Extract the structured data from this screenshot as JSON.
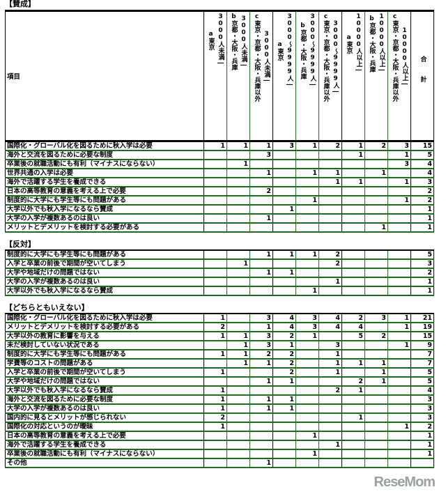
{
  "header": {
    "item_label": "項目",
    "total_label": "合計",
    "columns": [
      {
        "region": "a東京",
        "size": "3000人未満―"
      },
      {
        "region": "b京都・大阪・兵庫",
        "size": "3000人未満―"
      },
      {
        "region": "c東京・京都・大阪・兵庫以外",
        "size": "3000人未満―"
      },
      {
        "region": "a東京",
        "size": "3000～9999人―"
      },
      {
        "region": "b京都・大阪・兵庫",
        "size": "3000～9999人―"
      },
      {
        "region": "c東京・京都・大阪・兵庫以外",
        "size": "3000～9999人―"
      },
      {
        "region": "a東京",
        "size": "10000人以上―"
      },
      {
        "region": "b京都・大阪・兵庫",
        "size": "10000人以上―"
      },
      {
        "region": "c東京・京都・大阪・兵庫以外",
        "size": "10000人以上―"
      }
    ]
  },
  "sections": [
    {
      "title": "【賛成】",
      "rows": [
        {
          "label": "国際化・グローバル化を図るために秋入学は必要",
          "values": [
            "1",
            "1",
            "1",
            "3",
            "1",
            "2",
            "1",
            "2",
            "3"
          ],
          "total": "15"
        },
        {
          "label": "海外と交流を図るために必要な制度",
          "values": [
            "",
            "",
            "3",
            "",
            "",
            "",
            "1",
            "",
            "1"
          ],
          "total": "5"
        },
        {
          "label": "卒業後の就職活動にも有利（マイナスにならない）",
          "values": [
            "",
            "1",
            "",
            "",
            "",
            "",
            "",
            "",
            "3"
          ],
          "total": "4"
        },
        {
          "label": "世界共通の入学は必要",
          "values": [
            "",
            "",
            "1",
            "",
            "1",
            "1",
            "",
            "1",
            ""
          ],
          "total": "4"
        },
        {
          "label": "海外で活躍する学生を養成できる",
          "values": [
            "",
            "",
            "",
            "",
            "",
            "1",
            "1",
            "",
            "1"
          ],
          "total": "3"
        },
        {
          "label": "日本の高等教育の意義を考える上で必要",
          "values": [
            "",
            "",
            "2",
            "",
            "",
            "",
            "",
            "",
            ""
          ],
          "total": "2"
        },
        {
          "label": "制度的に大学にも学生等にも問題がある",
          "values": [
            "",
            "",
            "",
            "",
            "1",
            "",
            "",
            "",
            "1"
          ],
          "total": "2"
        },
        {
          "label": "大学以外でも秋入学になるなら賛成",
          "values": [
            "",
            "",
            "",
            "1",
            "",
            "",
            "",
            "",
            ""
          ],
          "total": "1"
        },
        {
          "label": "大学の入学が複数あるのは良い",
          "values": [
            "",
            "",
            "1",
            "",
            "",
            "",
            "",
            "",
            ""
          ],
          "total": "1"
        },
        {
          "label": "メリットとデメリットを検討する必要がある",
          "values": [
            "",
            "",
            "",
            "",
            "",
            "",
            "",
            "1",
            ""
          ],
          "total": "1"
        }
      ]
    },
    {
      "title": "【反対】",
      "rows": [
        {
          "label": "制度的に大学にも学生等にも問題がある",
          "values": [
            "",
            "",
            "1",
            "1",
            "1",
            "2",
            "",
            "",
            ""
          ],
          "total": "5"
        },
        {
          "label": "入学と卒業の前後で期間が空いてしまう",
          "values": [
            "",
            "1",
            "",
            "",
            "",
            "2",
            "",
            "",
            ""
          ],
          "total": "3"
        },
        {
          "label": "大学や地域だけの問題ではない",
          "values": [
            "",
            "",
            "1",
            "1",
            "",
            "",
            "",
            "",
            ""
          ],
          "total": "2"
        },
        {
          "label": "大学の入学が複数あるのは良い",
          "values": [
            "",
            "",
            "",
            "",
            "",
            "1",
            "",
            "",
            ""
          ],
          "total": "1"
        },
        {
          "label": "大学以外でも秋入学になるなら賛成",
          "values": [
            "",
            "",
            "",
            "",
            "1",
            "",
            "",
            "",
            ""
          ],
          "total": "1"
        }
      ]
    },
    {
      "title": "【どちらともいえない】",
      "rows": [
        {
          "label": "国際化・グローバル化を図るために秋入学は必要",
          "values": [
            "1",
            "",
            "3",
            "4",
            "3",
            "4",
            "2",
            "3",
            "1"
          ],
          "total": "21"
        },
        {
          "label": "メリットとデメリットを検討する必要がある",
          "values": [
            "2",
            "",
            "1",
            "4",
            "3",
            "4",
            "4",
            "",
            "1"
          ],
          "total": "19"
        },
        {
          "label": "大学以外の教育に影響を与える",
          "values": [
            "1",
            "1",
            "3",
            "2",
            "1",
            "",
            "5",
            "2",
            ""
          ],
          "total": "15"
        },
        {
          "label": "未だ検討していない状況である",
          "values": [
            "",
            "1",
            "3",
            "1",
            "",
            "3",
            "",
            "",
            "1"
          ],
          "total": "9"
        },
        {
          "label": "制度的に大学にも学生等にも問題がある",
          "values": [
            "1",
            "1",
            "2",
            "2",
            "",
            "1",
            "",
            "",
            ""
          ],
          "total": "7"
        },
        {
          "label": "学費等のコストの問題がある",
          "values": [
            "",
            "1",
            "1",
            "2",
            "",
            "1",
            "1",
            "1",
            ""
          ],
          "total": "7"
        },
        {
          "label": "入学と卒業の前後で期間が空いてしまう",
          "values": [
            "1",
            "",
            "",
            "2",
            "",
            "1",
            "",
            "1",
            ""
          ],
          "total": "5"
        },
        {
          "label": "大学や地域だけの問題ではない",
          "values": [
            "",
            "",
            "1",
            "1",
            "",
            "",
            "2",
            "1",
            ""
          ],
          "total": "5"
        },
        {
          "label": "大学以外でも秋入学になるなら賛成",
          "values": [
            "1",
            "",
            "",
            "",
            "",
            "2",
            "1",
            "",
            ""
          ],
          "total": "4"
        },
        {
          "label": "海外と交流を図るために必要な制度",
          "values": [
            "1",
            "",
            "1",
            "1",
            "",
            "",
            "",
            "",
            ""
          ],
          "total": "3"
        },
        {
          "label": "大学の入学が複数あるのは良い",
          "values": [
            "1",
            "",
            "1",
            "1",
            "",
            "",
            "",
            "",
            ""
          ],
          "total": "3"
        },
        {
          "label": "国内的に見るとメリットが感じられない",
          "values": [
            "2",
            "",
            "",
            "",
            "",
            "",
            "1",
            "",
            ""
          ],
          "total": "3"
        },
        {
          "label": "国際化の対応というのが曖昧",
          "values": [
            "1",
            "",
            "",
            "",
            "",
            "",
            "",
            "",
            "1"
          ],
          "total": "2"
        },
        {
          "label": "日本の高等教育の意義を考える上で必要",
          "values": [
            "",
            "",
            "",
            "",
            "1",
            "",
            "",
            "",
            ""
          ],
          "total": "1"
        },
        {
          "label": "海外で活躍する学生を養成できる",
          "values": [
            "",
            "",
            "",
            "",
            "",
            "1",
            "",
            "",
            ""
          ],
          "total": "1"
        },
        {
          "label": "卒業後の就職活動にも有利（マイナスにならない）",
          "values": [
            "",
            "",
            "",
            "",
            "1",
            "",
            "",
            "",
            ""
          ],
          "total": "1"
        },
        {
          "label": "その他",
          "values": [
            "",
            "",
            "1",
            "",
            "",
            "",
            "",
            "",
            ""
          ],
          "total": ""
        }
      ]
    }
  ],
  "watermark": "ReseMom",
  "colors": {
    "grid_green": "#1e6b1e",
    "grid_black": "#000000",
    "watermark": "#9aa0a4"
  }
}
